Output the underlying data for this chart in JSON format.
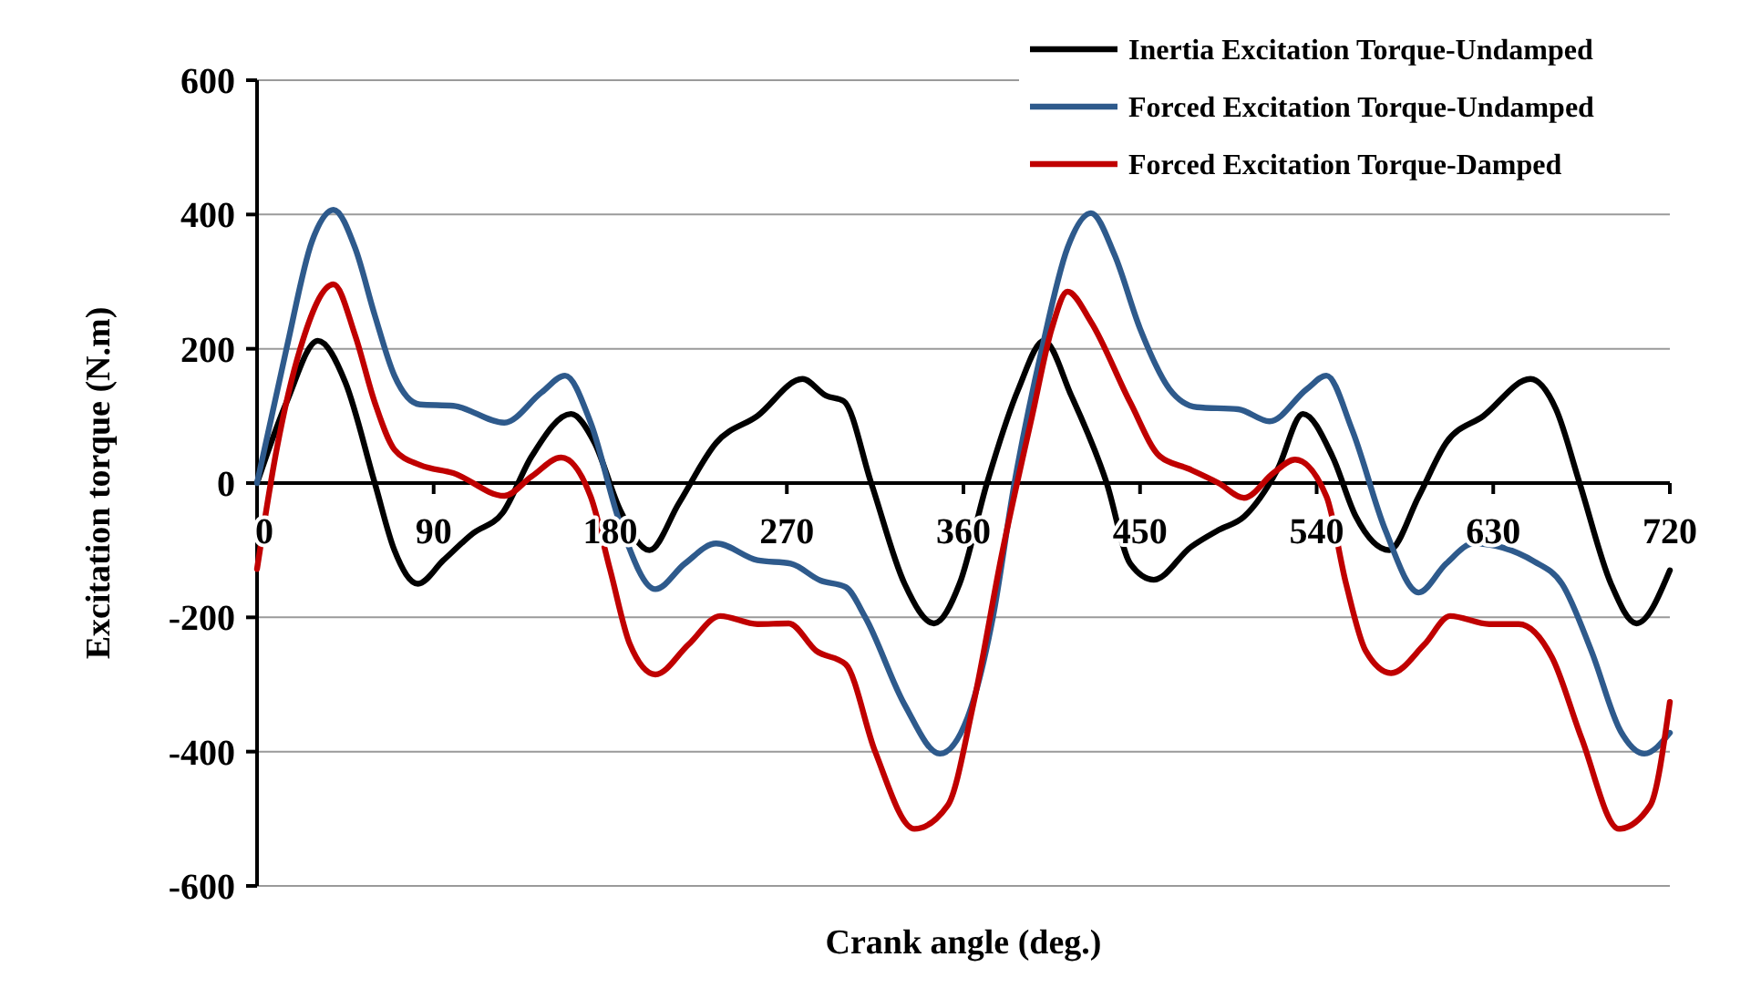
{
  "chart_data": {
    "type": "line",
    "xlabel": "Crank angle (deg.)",
    "ylabel": "Excitation torque (N.m)",
    "xlim": [
      0,
      720
    ],
    "xticks": [
      0,
      90,
      180,
      270,
      360,
      450,
      540,
      630,
      720
    ],
    "ylim": [
      -600,
      600
    ],
    "yticks": [
      -600,
      -400,
      -200,
      0,
      200,
      400,
      600
    ],
    "grid": "y",
    "legend": "top right",
    "marker": "none",
    "line_style": "solid",
    "series": [
      {
        "name": "Inertia Excitation Torque-Undamped",
        "color": "#000000",
        "x": [
          0,
          15,
          31,
          45,
          60,
          70,
          82,
          95,
          110,
          125,
          140,
          160,
          172,
          185,
          200,
          215,
          234,
          255,
          278,
          290,
          299,
          313,
          330,
          345,
          358,
          372,
          388,
          401,
          415,
          433,
          445,
          457,
          476,
          490,
          503,
          520,
          533,
          548,
          560,
          577,
          592,
          606,
          625,
          649,
          662,
          674,
          690,
          703,
          720
        ],
        "values": [
          0,
          120,
          212,
          150,
          0,
          -100,
          -150,
          -115,
          -75,
          -45,
          40,
          103,
          60,
          -40,
          -100,
          -30,
          60,
          100,
          155,
          130,
          122,
          0,
          -150,
          -209,
          -150,
          0,
          140,
          212,
          130,
          0,
          -120,
          -144,
          -95,
          -70,
          -50,
          20,
          103,
          40,
          -50,
          -100,
          -20,
          60,
          100,
          155,
          110,
          0,
          -150,
          -209,
          -130
        ]
      },
      {
        "name": "Forced Excitation Torque-Undamped",
        "color": "#2e5a8c",
        "x": [
          0,
          15,
          28,
          39,
          50,
          60,
          70,
          83,
          100,
          126,
          145,
          157,
          170,
          185,
          203,
          218,
          234,
          255,
          272,
          287,
          300,
          310,
          330,
          348,
          362,
          375,
          386,
          400,
          413,
          425,
          437,
          450,
          465,
          479,
          500,
          516,
          535,
          545,
          558,
          575,
          592,
          606,
          620,
          651,
          665,
          680,
          695,
          707,
          720
        ],
        "values": [
          0,
          200,
          360,
          407,
          350,
          250,
          160,
          117,
          115,
          90,
          135,
          160,
          90,
          -60,
          -158,
          -120,
          -90,
          -115,
          -120,
          -145,
          -155,
          -200,
          -330,
          -403,
          -350,
          -200,
          0,
          200,
          350,
          402,
          340,
          230,
          140,
          113,
          110,
          92,
          140,
          160,
          80,
          -70,
          -163,
          -120,
          -90,
          -117,
          -150,
          -250,
          -370,
          -403,
          -372
        ]
      },
      {
        "name": "Forced Excitation Torque-Damped",
        "color": "#c00000",
        "x": [
          0,
          10,
          22,
          39,
          50,
          60,
          70,
          83,
          100,
          126,
          140,
          155,
          170,
          180,
          190,
          203,
          220,
          236,
          255,
          271,
          285,
          300,
          315,
          335,
          352,
          365,
          380,
          395,
          405,
          413,
          425,
          445,
          460,
          475,
          490,
          503,
          518,
          529,
          545,
          555,
          565,
          578,
          595,
          608,
          628,
          643,
          660,
          675,
          694,
          710,
          720
        ],
        "values": [
          -128,
          50,
          200,
          296,
          220,
          120,
          50,
          27,
          15,
          -19,
          10,
          38,
          -20,
          -130,
          -240,
          -285,
          -240,
          -198,
          -210,
          -209,
          -250,
          -270,
          -400,
          -515,
          -480,
          -330,
          -100,
          100,
          230,
          285,
          240,
          120,
          40,
          21,
          0,
          -22,
          15,
          35,
          -20,
          -150,
          -250,
          -283,
          -240,
          -198,
          -210,
          -210,
          -260,
          -380,
          -515,
          -480,
          -326
        ]
      }
    ]
  }
}
